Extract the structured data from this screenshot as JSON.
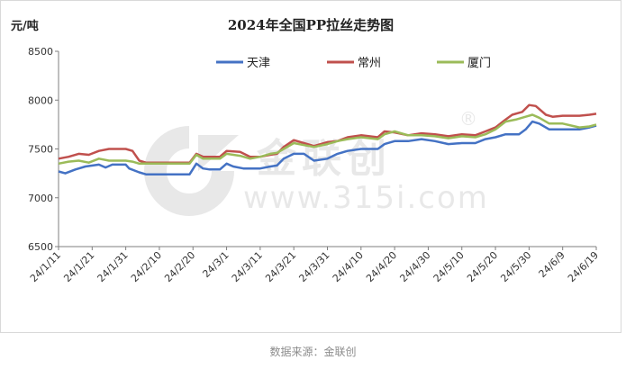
{
  "chart_data": {
    "type": "line",
    "title": "2024年全国PP拉丝走势图",
    "unit_label": "元/吨",
    "ylim": [
      6500,
      8500
    ],
    "yticks": [
      6500,
      7000,
      7500,
      8000,
      8500
    ],
    "xtick_labels": [
      "24/1/11",
      "24/1/21",
      "24/1/31",
      "24/2/10",
      "24/2/20",
      "24/3/1",
      "24/3/11",
      "24/3/21",
      "24/3/31",
      "24/4/10",
      "24/4/20",
      "24/4/30",
      "24/5/10",
      "24/5/20",
      "24/5/30",
      "24/6/9",
      "24/6/19"
    ],
    "x_start": "2024-01-11",
    "x_end": "2024-06-19",
    "legend_position": "top-center",
    "grid": false,
    "series": [
      {
        "name": "天津",
        "color": "#4472c4",
        "points": [
          [
            "2024-01-11",
            7270
          ],
          [
            "2024-01-13",
            7250
          ],
          [
            "2024-01-16",
            7290
          ],
          [
            "2024-01-19",
            7320
          ],
          [
            "2024-01-23",
            7340
          ],
          [
            "2024-01-25",
            7310
          ],
          [
            "2024-01-27",
            7340
          ],
          [
            "2024-01-31",
            7340
          ],
          [
            "2024-02-01",
            7300
          ],
          [
            "2024-02-04",
            7260
          ],
          [
            "2024-02-06",
            7240
          ],
          [
            "2024-02-19",
            7240
          ],
          [
            "2024-02-21",
            7350
          ],
          [
            "2024-02-23",
            7300
          ],
          [
            "2024-02-25",
            7290
          ],
          [
            "2024-02-28",
            7290
          ],
          [
            "2024-03-01",
            7350
          ],
          [
            "2024-03-03",
            7320
          ],
          [
            "2024-03-06",
            7300
          ],
          [
            "2024-03-11",
            7300
          ],
          [
            "2024-03-14",
            7320
          ],
          [
            "2024-03-16",
            7330
          ],
          [
            "2024-03-18",
            7400
          ],
          [
            "2024-03-21",
            7450
          ],
          [
            "2024-03-24",
            7450
          ],
          [
            "2024-03-27",
            7380
          ],
          [
            "2024-03-31",
            7400
          ],
          [
            "2024-04-03",
            7450
          ],
          [
            "2024-04-06",
            7480
          ],
          [
            "2024-04-10",
            7500
          ],
          [
            "2024-04-15",
            7500
          ],
          [
            "2024-04-17",
            7550
          ],
          [
            "2024-04-20",
            7580
          ],
          [
            "2024-04-24",
            7580
          ],
          [
            "2024-04-28",
            7600
          ],
          [
            "2024-05-02",
            7580
          ],
          [
            "2024-05-06",
            7550
          ],
          [
            "2024-05-10",
            7560
          ],
          [
            "2024-05-14",
            7560
          ],
          [
            "2024-05-17",
            7600
          ],
          [
            "2024-05-20",
            7620
          ],
          [
            "2024-05-23",
            7650
          ],
          [
            "2024-05-27",
            7650
          ],
          [
            "2024-05-29",
            7700
          ],
          [
            "2024-05-31",
            7780
          ],
          [
            "2024-06-02",
            7760
          ],
          [
            "2024-06-05",
            7700
          ],
          [
            "2024-06-09",
            7700
          ],
          [
            "2024-06-14",
            7700
          ],
          [
            "2024-06-17",
            7720
          ],
          [
            "2024-06-19",
            7740
          ]
        ]
      },
      {
        "name": "常州",
        "color": "#c0504d",
        "points": [
          [
            "2024-01-11",
            7400
          ],
          [
            "2024-01-14",
            7420
          ],
          [
            "2024-01-17",
            7450
          ],
          [
            "2024-01-20",
            7440
          ],
          [
            "2024-01-23",
            7480
          ],
          [
            "2024-01-26",
            7500
          ],
          [
            "2024-01-31",
            7500
          ],
          [
            "2024-02-02",
            7480
          ],
          [
            "2024-02-04",
            7380
          ],
          [
            "2024-02-06",
            7360
          ],
          [
            "2024-02-19",
            7360
          ],
          [
            "2024-02-21",
            7450
          ],
          [
            "2024-02-23",
            7420
          ],
          [
            "2024-02-28",
            7420
          ],
          [
            "2024-03-01",
            7480
          ],
          [
            "2024-03-05",
            7470
          ],
          [
            "2024-03-08",
            7420
          ],
          [
            "2024-03-11",
            7420
          ],
          [
            "2024-03-14",
            7440
          ],
          [
            "2024-03-16",
            7450
          ],
          [
            "2024-03-18",
            7520
          ],
          [
            "2024-03-21",
            7590
          ],
          [
            "2024-03-24",
            7560
          ],
          [
            "2024-03-27",
            7530
          ],
          [
            "2024-03-31",
            7570
          ],
          [
            "2024-04-03",
            7580
          ],
          [
            "2024-04-06",
            7620
          ],
          [
            "2024-04-10",
            7640
          ],
          [
            "2024-04-15",
            7620
          ],
          [
            "2024-04-17",
            7680
          ],
          [
            "2024-04-20",
            7670
          ],
          [
            "2024-04-24",
            7640
          ],
          [
            "2024-04-28",
            7660
          ],
          [
            "2024-05-02",
            7650
          ],
          [
            "2024-05-06",
            7630
          ],
          [
            "2024-05-10",
            7650
          ],
          [
            "2024-05-14",
            7640
          ],
          [
            "2024-05-17",
            7680
          ],
          [
            "2024-05-20",
            7720
          ],
          [
            "2024-05-23",
            7800
          ],
          [
            "2024-05-25",
            7850
          ],
          [
            "2024-05-28",
            7880
          ],
          [
            "2024-05-30",
            7950
          ],
          [
            "2024-06-01",
            7940
          ],
          [
            "2024-06-04",
            7850
          ],
          [
            "2024-06-06",
            7830
          ],
          [
            "2024-06-09",
            7840
          ],
          [
            "2024-06-14",
            7840
          ],
          [
            "2024-06-17",
            7850
          ],
          [
            "2024-06-19",
            7860
          ]
        ]
      },
      {
        "name": "厦门",
        "color": "#9bbb59",
        "points": [
          [
            "2024-01-11",
            7350
          ],
          [
            "2024-01-14",
            7370
          ],
          [
            "2024-01-17",
            7380
          ],
          [
            "2024-01-20",
            7360
          ],
          [
            "2024-01-23",
            7400
          ],
          [
            "2024-01-26",
            7380
          ],
          [
            "2024-01-31",
            7380
          ],
          [
            "2024-02-02",
            7370
          ],
          [
            "2024-02-04",
            7350
          ],
          [
            "2024-02-06",
            7350
          ],
          [
            "2024-02-19",
            7350
          ],
          [
            "2024-02-21",
            7440
          ],
          [
            "2024-02-23",
            7400
          ],
          [
            "2024-02-28",
            7400
          ],
          [
            "2024-03-01",
            7450
          ],
          [
            "2024-03-05",
            7430
          ],
          [
            "2024-03-08",
            7400
          ],
          [
            "2024-03-11",
            7420
          ],
          [
            "2024-03-14",
            7450
          ],
          [
            "2024-03-16",
            7460
          ],
          [
            "2024-03-18",
            7500
          ],
          [
            "2024-03-21",
            7560
          ],
          [
            "2024-03-24",
            7540
          ],
          [
            "2024-03-27",
            7520
          ],
          [
            "2024-03-31",
            7550
          ],
          [
            "2024-04-03",
            7580
          ],
          [
            "2024-04-06",
            7600
          ],
          [
            "2024-04-10",
            7620
          ],
          [
            "2024-04-15",
            7600
          ],
          [
            "2024-04-17",
            7650
          ],
          [
            "2024-04-20",
            7680
          ],
          [
            "2024-04-24",
            7640
          ],
          [
            "2024-04-28",
            7640
          ],
          [
            "2024-05-02",
            7630
          ],
          [
            "2024-05-06",
            7610
          ],
          [
            "2024-05-10",
            7630
          ],
          [
            "2024-05-14",
            7620
          ],
          [
            "2024-05-17",
            7650
          ],
          [
            "2024-05-20",
            7700
          ],
          [
            "2024-05-23",
            7780
          ],
          [
            "2024-05-26",
            7800
          ],
          [
            "2024-05-29",
            7830
          ],
          [
            "2024-05-31",
            7850
          ],
          [
            "2024-06-02",
            7820
          ],
          [
            "2024-06-05",
            7760
          ],
          [
            "2024-06-09",
            7760
          ],
          [
            "2024-06-14",
            7720
          ],
          [
            "2024-06-17",
            7730
          ],
          [
            "2024-06-19",
            7750
          ]
        ]
      }
    ]
  },
  "watermark": {
    "brand_text": "金联创",
    "url_text": "www.315i.com",
    "registered_mark": "®"
  },
  "footer": {
    "source_note": "数据来源：金联创"
  }
}
